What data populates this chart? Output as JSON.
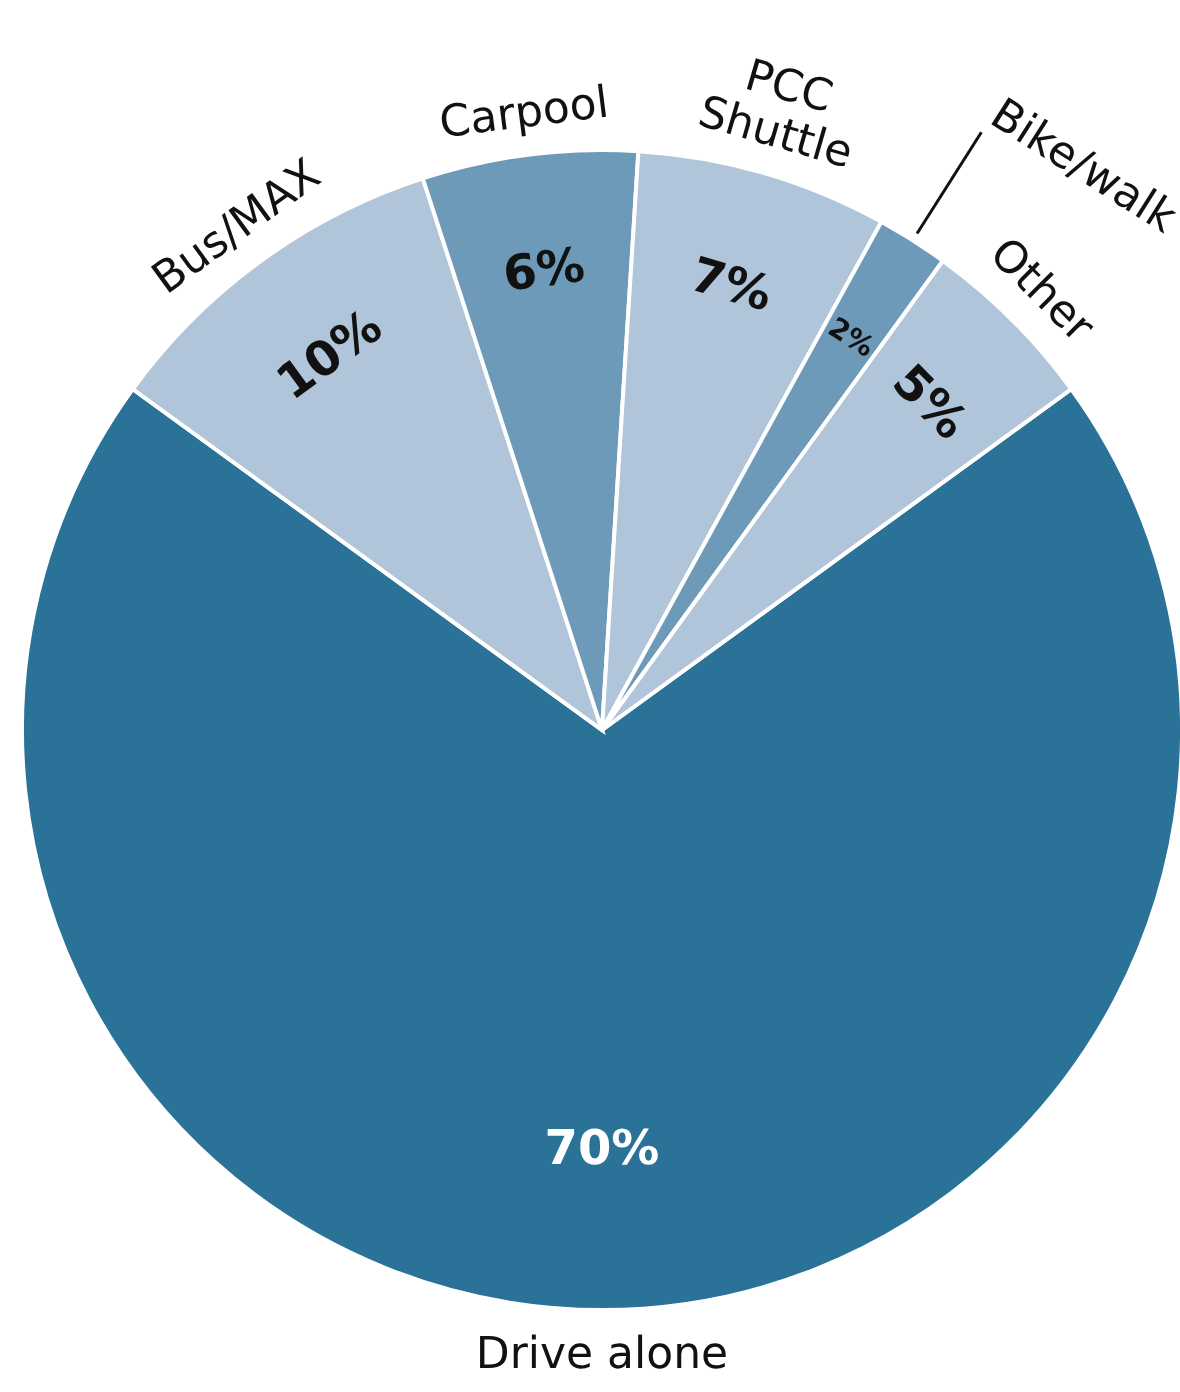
{
  "chart_data": {
    "type": "pie",
    "categories": [
      "Drive alone",
      "Bus/MAX",
      "Carpool",
      "PCC Shuttle",
      "Bike/walk",
      "Other"
    ],
    "values": [
      70,
      10,
      6,
      7,
      2,
      5
    ],
    "colors": [
      "#2a7297",
      "#b0c4da",
      "#6e9aba",
      "#b0c4da",
      "#6e9aba",
      "#b0c4da"
    ],
    "value_labels": [
      "70%",
      "10%",
      "6%",
      "7%",
      "2%",
      "5%"
    ]
  }
}
